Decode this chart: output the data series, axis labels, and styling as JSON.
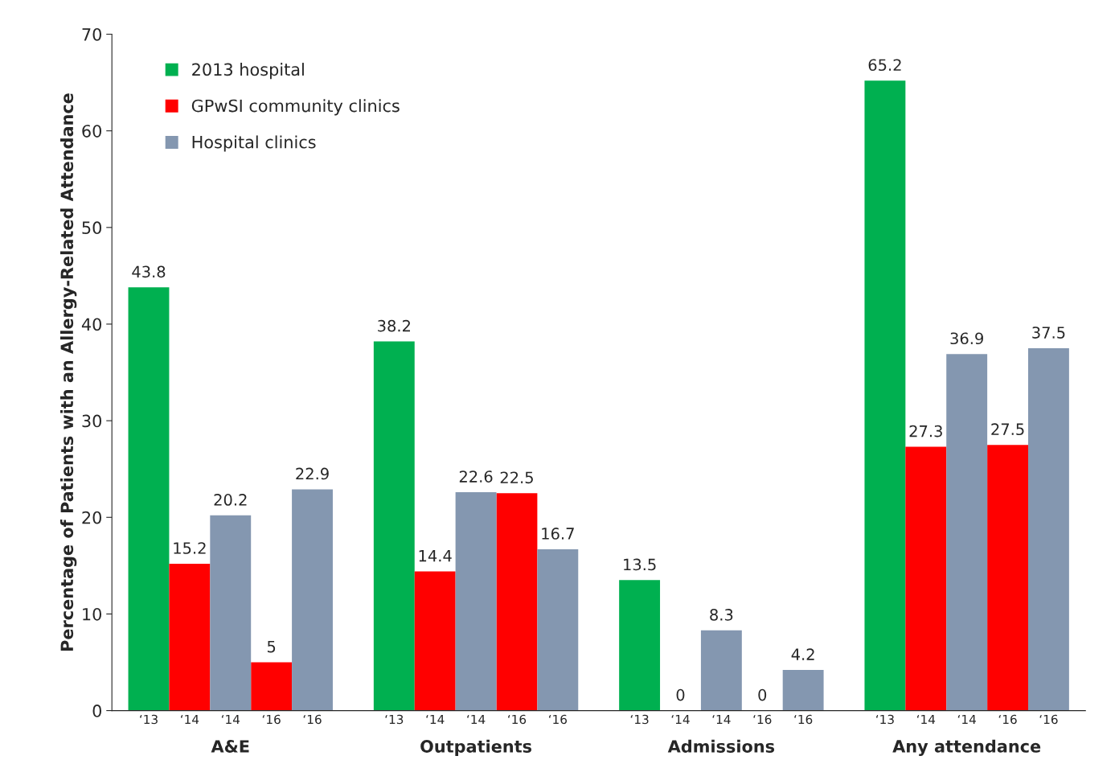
{
  "chart_data": {
    "type": "bar",
    "ylabel": "Percentage of Patients with an Allergy-Related Attendance",
    "categories": [
      "‘13",
      "‘14",
      "‘14",
      "‘16",
      "‘16",
      null,
      "‘13",
      "‘14",
      "‘14",
      "‘16",
      "‘16",
      null,
      "‘13",
      "‘14",
      "‘14",
      "‘16",
      "‘16",
      null,
      "‘13",
      "‘14",
      "‘14",
      "‘16",
      "‘16"
    ],
    "series": [
      {
        "name": "2013 hospital",
        "color": "#00b050",
        "values": [
          43.8,
          null,
          null,
          null,
          null,
          null,
          38.2,
          null,
          null,
          null,
          null,
          null,
          13.5,
          null,
          null,
          null,
          null,
          null,
          65.2,
          null,
          null,
          null,
          null
        ]
      },
      {
        "name": "GPwSI community clinics",
        "color": "#ff0000",
        "values": [
          null,
          15.2,
          null,
          5,
          null,
          null,
          null,
          14.4,
          null,
          22.5,
          null,
          null,
          null,
          0,
          null,
          0,
          null,
          null,
          null,
          27.3,
          null,
          27.5,
          null
        ]
      },
      {
        "name": "Hospital clinics",
        "color": "#8497b0",
        "values": [
          null,
          null,
          20.2,
          null,
          22.9,
          null,
          null,
          null,
          22.6,
          null,
          16.7,
          null,
          null,
          null,
          8.3,
          null,
          4.2,
          null,
          null,
          null,
          36.9,
          null,
          37.5
        ]
      }
    ],
    "annotations": [
      "A&E",
      "Outpatients",
      "Admissions",
      "Any attendance"
    ],
    "ylim": [
      0,
      70
    ],
    "yticks": [
      0,
      10,
      20,
      30,
      40,
      50,
      60,
      70
    ],
    "data_labels": true,
    "grid": false,
    "legend": "top left"
  }
}
